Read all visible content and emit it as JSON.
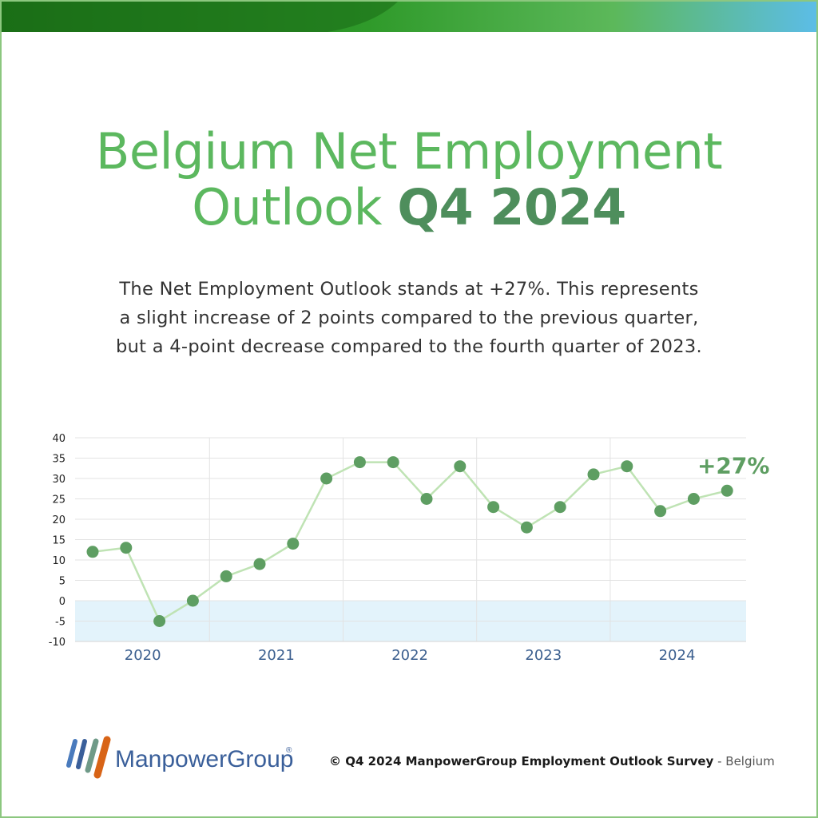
{
  "title": {
    "line1": "Belgium Net Employment",
    "line2_light": "Outlook",
    "line2_bold": "Q4 2024"
  },
  "description": {
    "line1": "The Net Employment Outlook stands at +27%. This represents",
    "line2": "a slight increase of 2 points compared to the previous quarter,",
    "line3": "but a 4-point decrease compared to the fourth quarter of 2023."
  },
  "chart_data": {
    "type": "line",
    "x": [
      "2020 Q1",
      "2020 Q2",
      "2020 Q3",
      "2020 Q4",
      "2021 Q1",
      "2021 Q2",
      "2021 Q3",
      "2021 Q4",
      "2022 Q1",
      "2022 Q2",
      "2022 Q3",
      "2022 Q4",
      "2023 Q1",
      "2023 Q2",
      "2023 Q3",
      "2023 Q4",
      "2024 Q1",
      "2024 Q2",
      "2024 Q3",
      "2024 Q4"
    ],
    "series": [
      {
        "values": [
          12,
          13,
          -5,
          0,
          6,
          9,
          14,
          30,
          34,
          34,
          25,
          33,
          23,
          18,
          23,
          31,
          33,
          22,
          25,
          27
        ]
      }
    ],
    "year_labels": [
      "2020",
      "2021",
      "2022",
      "2023",
      "2024"
    ],
    "y_ticks": [
      40,
      35,
      30,
      25,
      20,
      15,
      10,
      5,
      0,
      -5,
      -10
    ],
    "ylim": [
      -10,
      40
    ],
    "grid": true,
    "negative_region_shaded": true,
    "annotation": "+27%",
    "colors": {
      "line": "#bfe3b4",
      "point": "#5e9e62",
      "annotation": "#5e9e62",
      "negative_band": "#e3f3fb",
      "grid": "#e3e3e3",
      "year_label": "#3b5f8f"
    }
  },
  "footer": {
    "brand": "ManpowerGroup",
    "registered": "®",
    "copyright_bold": "© Q4 2024 ManpowerGroup Employment Outlook Survey",
    "copyright_rest": " - Belgium"
  },
  "colors": {
    "title_green": "#5cb85f",
    "title_dark_green": "#4e8e5c",
    "band_start": "#1e7a1e",
    "band_end": "#5cbde8",
    "brand_blue": "#3a5f9a",
    "border_green": "#8cc77f"
  }
}
